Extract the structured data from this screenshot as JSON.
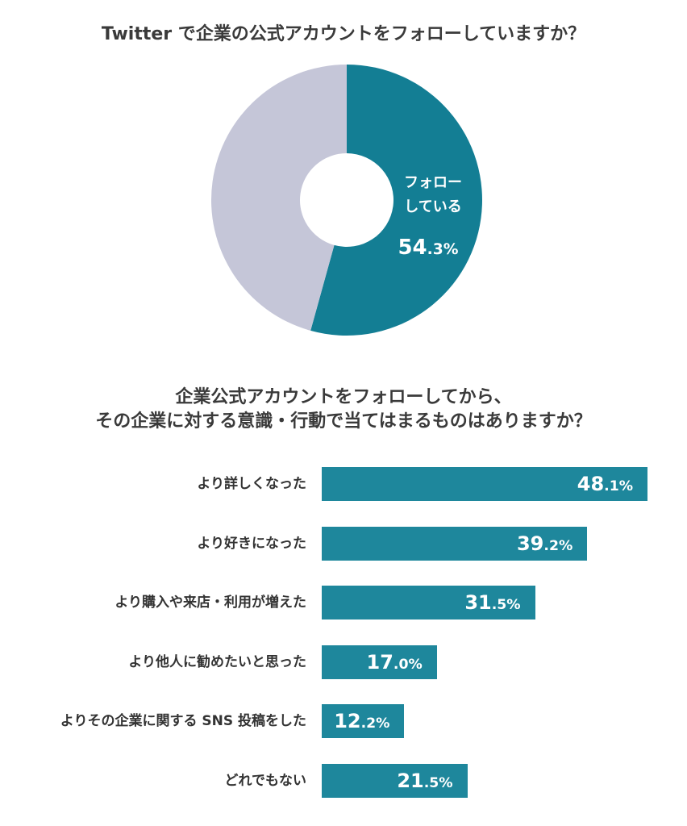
{
  "colors": {
    "followed": "#137e94",
    "other": "#c5c6d8",
    "bar": "#1e879c",
    "text": "#333333"
  },
  "chart_data": [
    {
      "type": "pie",
      "donut": true,
      "title": "Twitter で企業の公式アカウントをフォローしていますか？",
      "slices": [
        {
          "name": "フォローしている",
          "label_lines": [
            "フォロー",
            "している"
          ],
          "value": 54.3,
          "value_label": "54.3%",
          "color": "#137e94"
        },
        {
          "name": "",
          "value": 45.7,
          "color": "#c5c6d8"
        }
      ]
    },
    {
      "type": "bar",
      "orientation": "horizontal",
      "title_lines": [
        "企業公式アカウントをフォローしてから、",
        "その企業に対する意識・行動で当てはまるものはありますか？"
      ],
      "categories": [
        "より詳しくなった",
        "より好きになった",
        "より購入や来店・利用が増えた",
        "より他人に勧めたいと思った",
        "よりその企業に関する SNS 投稿をした",
        "どれでもない"
      ],
      "values": [
        48.1,
        39.2,
        31.5,
        17.0,
        12.2,
        21.5
      ],
      "value_labels": [
        "48.1%",
        "39.2%",
        "31.5%",
        "17.0%",
        "12.2%",
        "21.5%"
      ],
      "xlim": [
        0,
        50
      ],
      "grid": false,
      "legend": "none"
    }
  ]
}
